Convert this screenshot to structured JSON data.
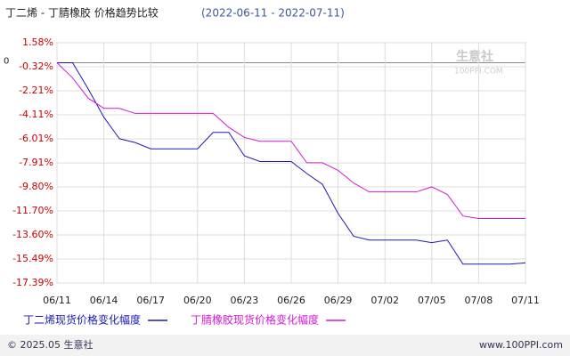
{
  "chart_data": {
    "type": "line",
    "title": "丁二烯 - 丁腈橡胶 价格趋势比较",
    "subtitle": "(2022-06-11 - 2022-07-11)",
    "categories": [
      "06/11",
      null,
      null,
      "06/14",
      null,
      null,
      "06/17",
      null,
      null,
      "06/20",
      null,
      null,
      "06/23",
      null,
      null,
      "06/26",
      null,
      null,
      "06/29",
      null,
      null,
      "07/02",
      null,
      null,
      "07/05",
      null,
      null,
      "07/08",
      null,
      null,
      "07/11"
    ],
    "series": [
      {
        "name": "丁二烯现货价格变化幅度",
        "color": "#1a1ab0",
        "values": [
          0,
          0,
          -2.07,
          -4.3,
          -6.0,
          -6.3,
          -6.8,
          -6.8,
          -6.8,
          -6.8,
          -5.5,
          -5.5,
          -7.35,
          -7.8,
          -7.8,
          -7.8,
          -8.75,
          -9.6,
          -11.9,
          -13.7,
          -14.0,
          -14.0,
          -14.0,
          -14.0,
          -14.2,
          -14.0,
          -15.9,
          -15.9,
          -15.9,
          -15.9,
          -15.8
        ]
      },
      {
        "name": "丁腈橡胶现货价格变化幅度",
        "color": "#d21ad2",
        "values": [
          0,
          -1.2,
          -2.8,
          -3.6,
          -3.6,
          -4.0,
          -4.0,
          -4.0,
          -4.0,
          -4.0,
          -4.0,
          -5.1,
          -5.9,
          -6.2,
          -6.2,
          -6.2,
          -7.9,
          -7.9,
          -8.5,
          -9.5,
          -10.2,
          -10.2,
          -10.2,
          -10.2,
          -9.8,
          -10.4,
          -12.1,
          -12.3,
          -12.3,
          -12.3,
          -12.3
        ]
      }
    ],
    "ylim": [
      -17.39,
      1.58
    ],
    "yticks": [
      {
        "value": 1.58,
        "label": "1.58%"
      },
      {
        "value": -0.32,
        "label": "-0.32%"
      },
      {
        "value": -2.21,
        "label": "-2.21%"
      },
      {
        "value": -4.11,
        "label": "-4.11%"
      },
      {
        "value": -6.01,
        "label": "-6.01%"
      },
      {
        "value": -7.91,
        "label": "-7.91%"
      },
      {
        "value": -9.8,
        "label": "-9.80%"
      },
      {
        "value": -11.7,
        "label": "-11.70%"
      },
      {
        "value": -13.6,
        "label": "-13.60%"
      },
      {
        "value": -15.49,
        "label": "-15.49%"
      },
      {
        "value": -17.39,
        "label": "-17.39%"
      }
    ],
    "zero_line": {
      "value": 0,
      "label": "0"
    },
    "grid": true,
    "watermark": [
      "生意社",
      "100PPI.COM"
    ],
    "footer": [
      "© 2025.05 生意社",
      "www.100PPI.com"
    ]
  }
}
